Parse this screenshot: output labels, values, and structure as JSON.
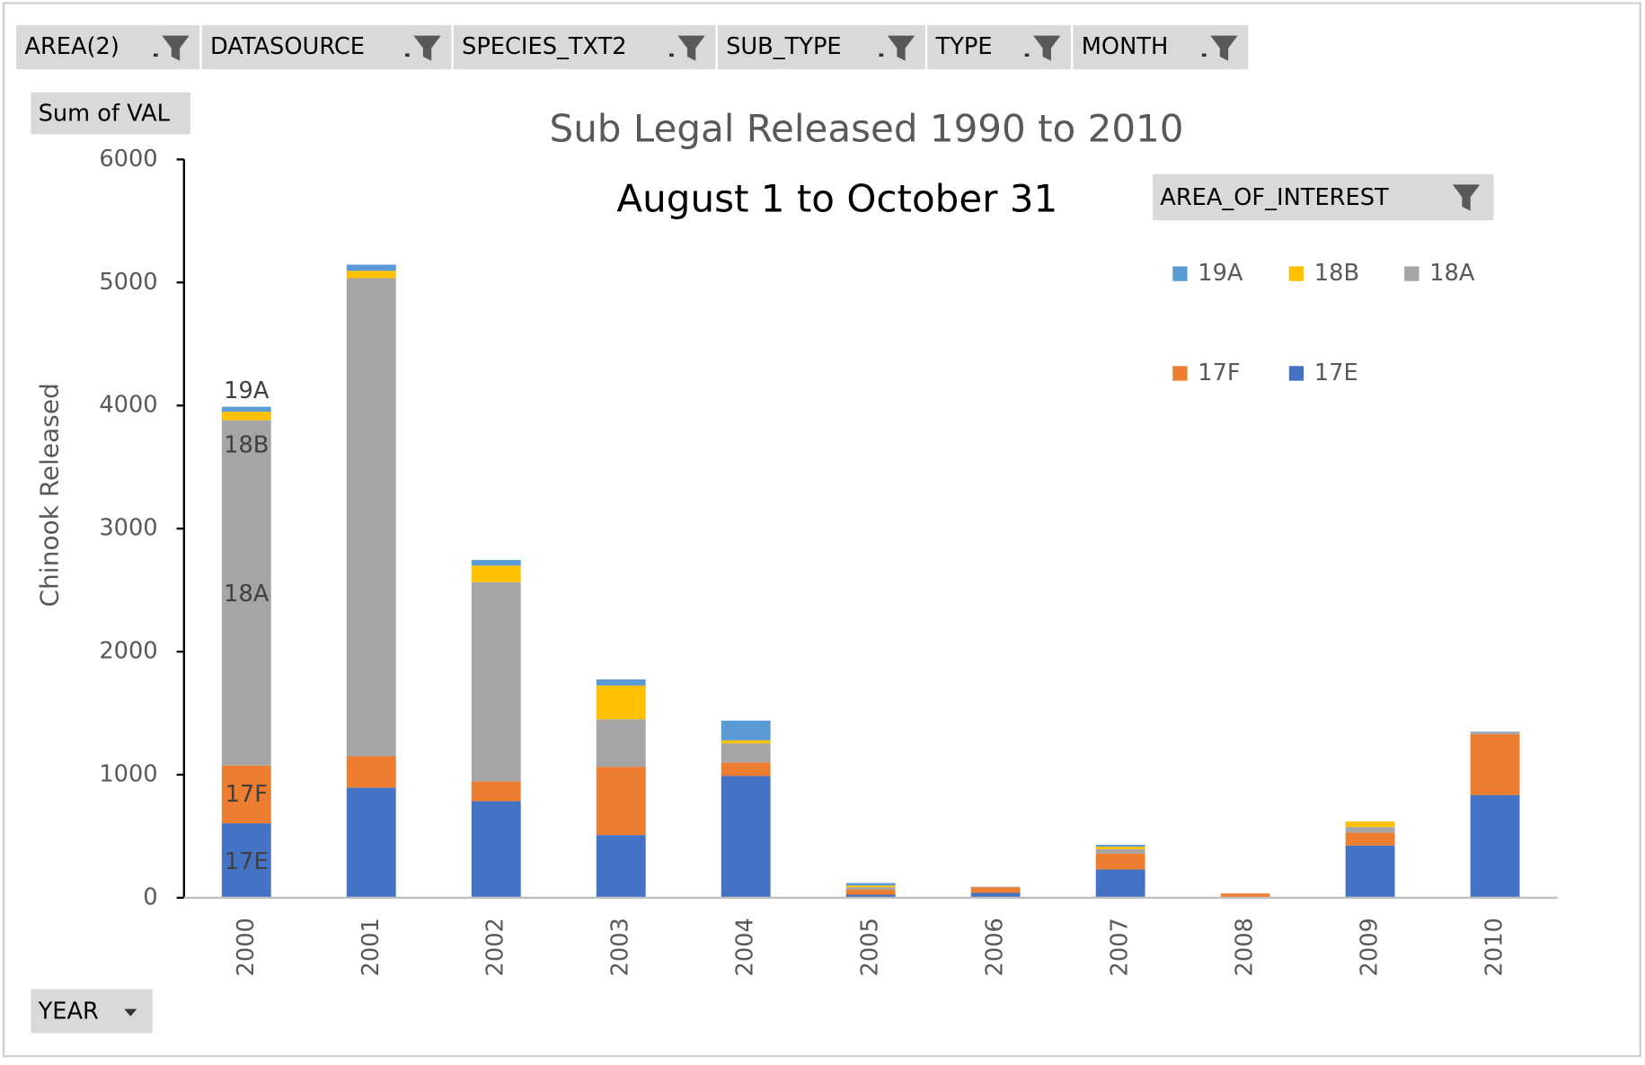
{
  "filters": [
    "AREA(2)",
    "DATASOURCE",
    "SPECIES_TXT2",
    "SUB_TYPE",
    "TYPE",
    "MONTH"
  ],
  "value_field": "Sum of VAL",
  "legend_field": "AREA_OF_INTEREST",
  "row_field": "YEAR",
  "chart_data": {
    "type": "stacked_bar",
    "title": "Sub Legal Released 1990 to 2010",
    "subtitle": "August 1 to October 31",
    "y_label": "Chinook Released",
    "categories": [
      "2000",
      "2001",
      "2002",
      "2003",
      "2004",
      "2005",
      "2006",
      "2007",
      "2008",
      "2009",
      "2010"
    ],
    "series": [
      {
        "name": "19A",
        "color": "#5b9bd5",
        "values": [
          40,
          50,
          45,
          50,
          160,
          20,
          0,
          15,
          0,
          0,
          5
        ]
      },
      {
        "name": "18B",
        "color": "#ffc000",
        "values": [
          70,
          60,
          135,
          275,
          25,
          15,
          0,
          20,
          0,
          45,
          0
        ]
      },
      {
        "name": "18A",
        "color": "#a5a5a5",
        "values": [
          2805,
          3885,
          1620,
          385,
          155,
          20,
          5,
          35,
          0,
          45,
          15
        ]
      },
      {
        "name": "17F",
        "color": "#ed7d31",
        "values": [
          470,
          255,
          160,
          555,
          110,
          40,
          45,
          130,
          35,
          105,
          495
        ]
      },
      {
        "name": "17E",
        "color": "#4472c4",
        "values": [
          605,
          895,
          785,
          510,
          990,
          25,
          40,
          230,
          0,
          425,
          835
        ]
      }
    ],
    "ylim": [
      0,
      6000
    ],
    "yticks": [
      0,
      1000,
      2000,
      3000,
      4000,
      5000,
      6000
    ]
  }
}
